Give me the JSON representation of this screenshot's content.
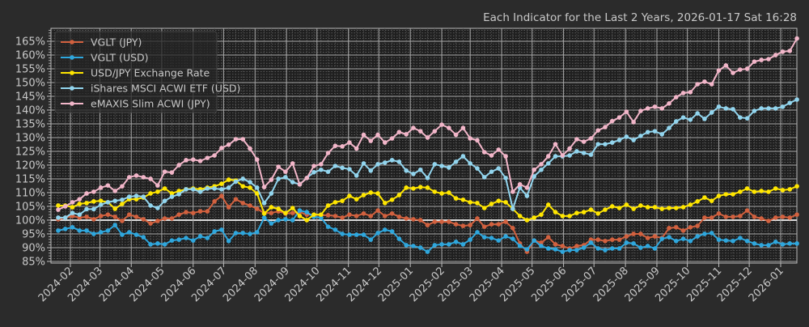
{
  "chart_data": {
    "type": "line",
    "title": "Each Indicator for the Last 2 Years, 2026-01-17 Sat 16:28",
    "xlabel": "",
    "ylabel": "",
    "x_start": "2024-01-20",
    "interval_days": 7,
    "ylim": [
      84.4,
      169.7
    ],
    "grid": true,
    "legend_position": "top-left",
    "yticks": [
      85,
      90,
      95,
      100,
      105,
      110,
      115,
      120,
      125,
      130,
      135,
      140,
      145,
      150,
      155,
      160,
      165
    ],
    "ytick_labels": [
      "85%",
      "90%",
      "95%",
      "100%",
      "105%",
      "110%",
      "115%",
      "120%",
      "125%",
      "130%",
      "135%",
      "140%",
      "145%",
      "150%",
      "155%",
      "160%",
      "165%"
    ],
    "xtick_labels": [
      "2024-02",
      "2024-03",
      "2024-04",
      "2024-05",
      "2024-06",
      "2024-07",
      "2024-08",
      "2024-09",
      "2024-10",
      "2024-11",
      "2024-12",
      "2025-01",
      "2025-02",
      "2025-03",
      "2025-04",
      "2025-05",
      "2025-06",
      "2025-07",
      "2025-08",
      "2025-09",
      "2025-10",
      "2025-11",
      "2025-12",
      "2026-01"
    ],
    "series": [
      {
        "name": "VGLT (JPY)",
        "color": "#d2613f",
        "values": [
          100.3,
          100.9,
          101.5,
          100.9,
          101.2,
          100.3,
          101.5,
          102,
          101.2,
          99.7,
          102,
          101.2,
          100.3,
          98.8,
          99.7,
          100.6,
          100.6,
          102,
          102.9,
          102.6,
          103.2,
          103.2,
          106.8,
          108.8,
          104.7,
          107.6,
          106.2,
          105.3,
          104.1,
          102.6,
          102.6,
          103.2,
          102.4,
          102.6,
          102.9,
          102,
          102,
          101.8,
          101.8,
          101.5,
          100.9,
          102,
          101.5,
          102.4,
          101.5,
          103.5,
          101.5,
          102.4,
          101.2,
          100.6,
          100.3,
          100,
          98.2,
          99.4,
          99.4,
          99.4,
          98.5,
          97.9,
          98.2,
          100.6,
          97.6,
          98.5,
          98.5,
          99.4,
          97.1,
          91.5,
          88.5,
          92.6,
          91.8,
          93.8,
          91.2,
          90.6,
          89.7,
          90.6,
          90.9,
          92.9,
          92.9,
          92.4,
          92.9,
          92.9,
          94.1,
          95,
          95,
          93.5,
          94.1,
          93.5,
          97.1,
          97.4,
          96.2,
          97.4,
          97.9,
          100.9,
          100.9,
          102.4,
          101.2,
          101.2,
          101.5,
          103.5,
          101.2,
          100.6,
          99.7,
          100.9,
          101.2,
          100.9,
          102
        ]
      },
      {
        "name": "VGLT (USD)",
        "color": "#2fa7dd",
        "values": [
          96.2,
          96.8,
          97.4,
          96.2,
          96.2,
          95,
          95.6,
          96.2,
          98.2,
          94.7,
          95.6,
          94.7,
          93.8,
          91.2,
          91.5,
          91.2,
          92.6,
          92.9,
          93.5,
          92.6,
          94.1,
          93.5,
          95.9,
          96.5,
          92.4,
          95.3,
          95.3,
          95,
          95.6,
          100.9,
          98.8,
          100,
          100.3,
          100,
          103.5,
          102.9,
          101.2,
          100.9,
          97.6,
          96.5,
          95,
          94.7,
          94.7,
          94.7,
          92.9,
          95.3,
          96.5,
          95.9,
          93.2,
          90.9,
          90.6,
          90,
          88.5,
          90.9,
          91.2,
          91.2,
          92.1,
          91.2,
          92.9,
          95.6,
          93.8,
          93.5,
          92.6,
          94.1,
          93.2,
          90.6,
          89.4,
          92.6,
          90.6,
          89.7,
          89.4,
          88.5,
          89.1,
          89.1,
          90,
          91.8,
          89.7,
          89.1,
          89.7,
          89.7,
          91.8,
          91.5,
          90,
          90.6,
          89.7,
          93.2,
          93.8,
          92.4,
          93.2,
          92.4,
          94.1,
          95,
          95.3,
          92.9,
          92.6,
          92.4,
          93.5,
          92.4,
          91.5,
          90.9,
          90.9,
          92.1,
          91.2,
          91.5,
          91.5
        ]
      },
      {
        "name": "USD/JPY Exchange Rate",
        "color": "#ffe600",
        "values": [
          105.3,
          105.3,
          104.7,
          105.9,
          106.2,
          106.8,
          107,
          106.5,
          104.1,
          105.9,
          107.6,
          107.6,
          108.2,
          109.7,
          110.3,
          111.5,
          109.7,
          110.6,
          111.2,
          111.5,
          111.2,
          111.8,
          112.3,
          113.2,
          114.7,
          114.4,
          112.3,
          111.8,
          109.7,
          102.4,
          104.7,
          104.1,
          102.6,
          104.4,
          101.5,
          100,
          102,
          102,
          105.3,
          106.5,
          107,
          108.8,
          107.6,
          109.1,
          110,
          109.7,
          106.2,
          107.4,
          109.1,
          111.8,
          111.5,
          112,
          111.8,
          110.3,
          109.7,
          110,
          107.9,
          107.4,
          106.5,
          106.2,
          104.4,
          105.9,
          107,
          106.5,
          104.1,
          101.5,
          100,
          100.9,
          102,
          105.6,
          102.9,
          101.5,
          101.5,
          102.6,
          102.9,
          103.8,
          102.4,
          103.8,
          105,
          104.4,
          105.6,
          104.1,
          105.3,
          104.7,
          104.7,
          104.1,
          104.4,
          104.4,
          104.7,
          105.6,
          106.8,
          108.2,
          107,
          108.8,
          109.4,
          109.4,
          110.3,
          111.5,
          110.3,
          110.6,
          110.3,
          111.5,
          110.9,
          111.2,
          112.3
        ]
      },
      {
        "name": "iShares MSCI ACWI ETF (USD)",
        "color": "#92d5ee",
        "values": [
          100.9,
          100.9,
          102.6,
          102,
          104,
          104,
          105.6,
          106.5,
          107,
          107.4,
          108.5,
          108.8,
          108.5,
          105.3,
          104.4,
          107,
          108.5,
          109.4,
          111.2,
          111.2,
          110.3,
          111.5,
          111.5,
          111.2,
          111.8,
          114,
          115,
          113.8,
          111.8,
          106.2,
          109.7,
          115,
          115.6,
          113.8,
          113,
          115.3,
          117.4,
          118.3,
          117.6,
          119.7,
          119,
          118.5,
          116.2,
          120.6,
          118,
          120.3,
          120.9,
          121.8,
          121.2,
          118,
          116.8,
          118.3,
          115.3,
          120.3,
          119.7,
          119.1,
          121.2,
          123.2,
          120.6,
          118.8,
          115.6,
          117.6,
          118.8,
          115.3,
          104.1,
          111.8,
          108.8,
          115.9,
          118.3,
          120.6,
          123.2,
          123.2,
          123.5,
          125,
          124.4,
          123.8,
          127.6,
          127.6,
          128.2,
          129.1,
          130.3,
          129.1,
          130.6,
          132,
          132.3,
          131.2,
          133.5,
          135.9,
          137.3,
          136.5,
          138.8,
          136.8,
          139.1,
          141.2,
          140.6,
          140.3,
          137.3,
          137,
          139.7,
          140.6,
          140.6,
          140.6,
          141.2,
          142.6,
          143.8
        ]
      },
      {
        "name": "eMAXIS Slim ACWI (JPY)",
        "color": "#f2b6c9",
        "values": [
          103.8,
          105,
          106.5,
          107.6,
          109.7,
          110.3,
          111.8,
          112.6,
          110.6,
          112.3,
          115.6,
          116.2,
          115.6,
          115,
          112.6,
          117.6,
          117.3,
          120,
          121.8,
          122,
          121.5,
          122.6,
          123.5,
          126.2,
          127.4,
          129.4,
          129.4,
          126,
          122,
          112,
          114.7,
          119.4,
          117.6,
          120.6,
          113,
          115.3,
          119.7,
          120.3,
          124.4,
          127,
          126.8,
          128.2,
          126,
          131,
          128.8,
          131,
          128.2,
          129.7,
          132,
          131.2,
          133.5,
          132.3,
          130,
          132.3,
          134.7,
          133.5,
          131,
          133.5,
          129.7,
          129,
          124.7,
          123.5,
          125.6,
          123.2,
          110.3,
          113,
          111.8,
          118.3,
          120.3,
          123.2,
          127.6,
          123.5,
          126,
          129.4,
          128.5,
          129.7,
          132.6,
          133.8,
          136,
          137.3,
          139.4,
          135.6,
          139.7,
          140.6,
          141.2,
          140.6,
          142.4,
          144.7,
          146.2,
          146.5,
          149.4,
          150.3,
          149.4,
          154.4,
          156.2,
          153.5,
          154.7,
          155,
          157.6,
          158.2,
          158.5,
          160,
          161.2,
          161.5,
          166
        ]
      }
    ]
  }
}
